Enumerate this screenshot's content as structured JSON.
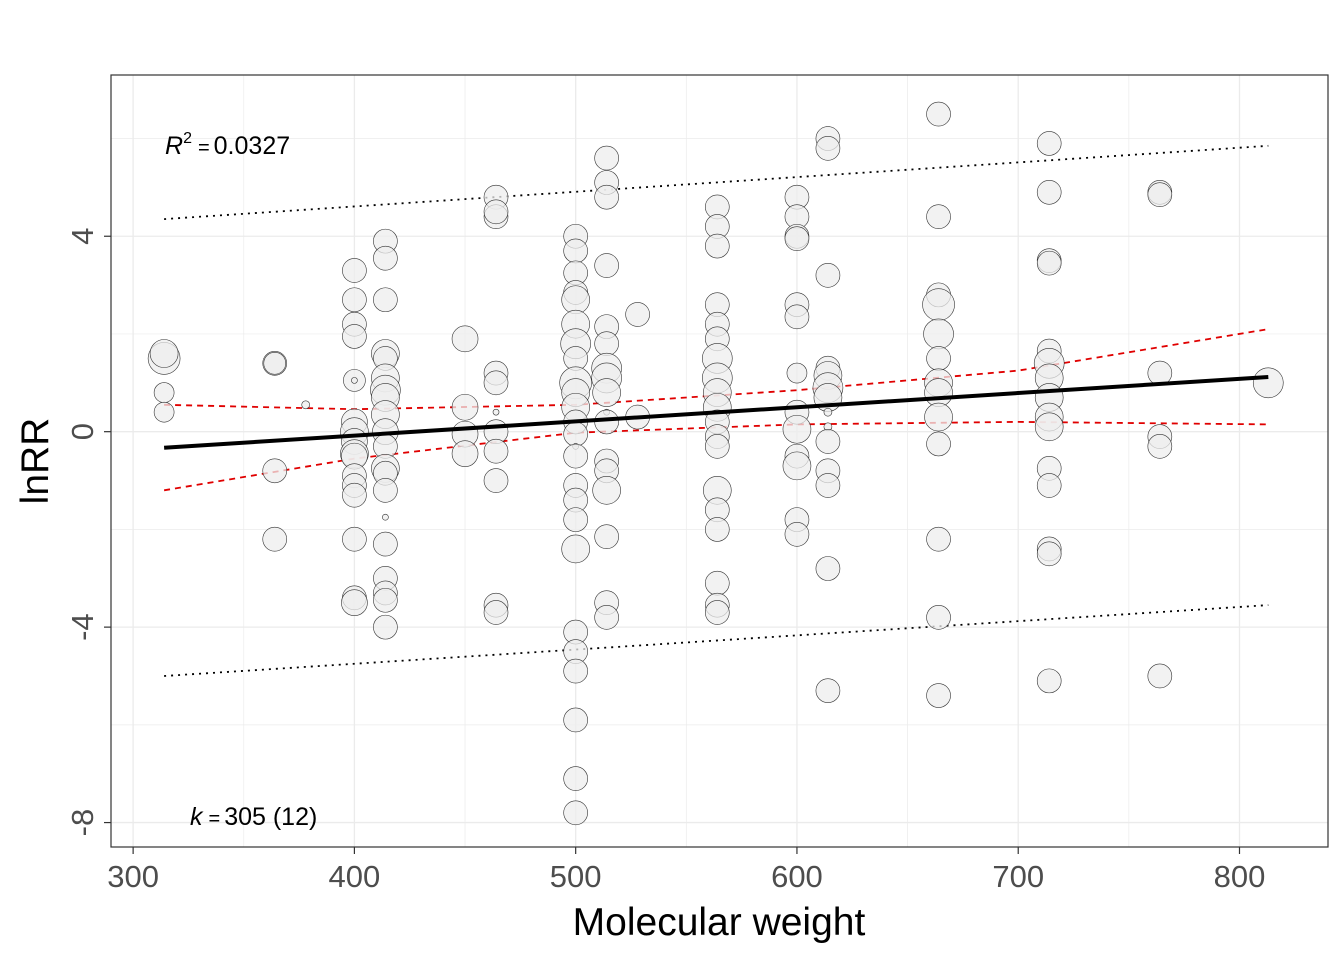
{
  "chart_data": {
    "type": "scatter",
    "xlabel": "Molecular weight",
    "ylabel": "lnRR",
    "xlim": [
      290,
      840
    ],
    "ylim": [
      -8.5,
      7.3
    ],
    "x_ticks": [
      300,
      400,
      500,
      600,
      700,
      800
    ],
    "y_ticks": [
      4,
      0,
      -4,
      -8
    ],
    "x_tick_labels": [
      "300",
      "400",
      "500",
      "600",
      "700",
      "800"
    ],
    "y_tick_labels": [
      "4",
      "0",
      "-4",
      "-8"
    ],
    "grid": true,
    "annotations": {
      "r2_symbol": "R",
      "r2_exp": "2",
      "r2_eq": "=",
      "r2_value": "0.0327",
      "k_symbol": "k",
      "k_eq": "=",
      "k_value": "305 (12)"
    },
    "regression_line": {
      "x": [
        314,
        813
      ],
      "y": [
        -0.33,
        1.12
      ]
    },
    "confidence_band": {
      "x": [
        314,
        400,
        500,
        600,
        700,
        813
      ],
      "upper": [
        0.55,
        0.46,
        0.55,
        0.85,
        1.25,
        2.1
      ],
      "lower": [
        -1.2,
        -0.55,
        -0.02,
        0.15,
        0.2,
        0.15
      ]
    },
    "prediction_band": {
      "x": [
        314,
        813
      ],
      "upper": [
        4.35,
        5.85
      ],
      "lower": [
        -5.0,
        -3.55
      ]
    },
    "colors": {
      "point_fill": "#eeeeee",
      "point_stroke": "#333333",
      "regression": "#000000",
      "confidence": "#e00000",
      "prediction": "#000000",
      "grid": "#ebebeb",
      "panel_border": "#333333"
    },
    "points": [
      {
        "x": 314,
        "y": 1.5,
        "s": 16
      },
      {
        "x": 314,
        "y": 1.6,
        "s": 14
      },
      {
        "x": 314,
        "y": 0.8,
        "s": 10
      },
      {
        "x": 314,
        "y": 0.4,
        "s": 10
      },
      {
        "x": 378,
        "y": 0.55,
        "s": 4
      },
      {
        "x": 364,
        "y": 1.4,
        "s": 12
      },
      {
        "x": 364,
        "y": 1.4,
        "s": 11
      },
      {
        "x": 364,
        "y": -0.8,
        "s": 12
      },
      {
        "x": 364,
        "y": -2.2,
        "s": 12
      },
      {
        "x": 400,
        "y": 3.3,
        "s": 12
      },
      {
        "x": 400,
        "y": 2.7,
        "s": 12
      },
      {
        "x": 400,
        "y": 2.2,
        "s": 12
      },
      {
        "x": 400,
        "y": 1.95,
        "s": 12
      },
      {
        "x": 400,
        "y": 1.05,
        "s": 11
      },
      {
        "x": 400,
        "y": 1.05,
        "s": 3
      },
      {
        "x": 400,
        "y": 0.2,
        "s": 13
      },
      {
        "x": 400,
        "y": 0.0,
        "s": 14
      },
      {
        "x": 400,
        "y": -0.2,
        "s": 13
      },
      {
        "x": 400,
        "y": -0.45,
        "s": 14
      },
      {
        "x": 400,
        "y": -0.5,
        "s": 13
      },
      {
        "x": 400,
        "y": -0.9,
        "s": 12
      },
      {
        "x": 400,
        "y": -1.1,
        "s": 12
      },
      {
        "x": 400,
        "y": -1.3,
        "s": 12
      },
      {
        "x": 400,
        "y": -2.2,
        "s": 12
      },
      {
        "x": 400,
        "y": -3.4,
        "s": 12
      },
      {
        "x": 400,
        "y": -3.5,
        "s": 13
      },
      {
        "x": 414,
        "y": 3.9,
        "s": 12
      },
      {
        "x": 414,
        "y": 3.55,
        "s": 12
      },
      {
        "x": 414,
        "y": 2.7,
        "s": 12
      },
      {
        "x": 414,
        "y": 1.6,
        "s": 14
      },
      {
        "x": 414,
        "y": 1.5,
        "s": 12
      },
      {
        "x": 414,
        "y": 1.1,
        "s": 14
      },
      {
        "x": 414,
        "y": 0.85,
        "s": 15
      },
      {
        "x": 414,
        "y": 0.7,
        "s": 14
      },
      {
        "x": 414,
        "y": 0.35,
        "s": 14
      },
      {
        "x": 414,
        "y": 0.0,
        "s": 13
      },
      {
        "x": 414,
        "y": -0.3,
        "s": 12
      },
      {
        "x": 414,
        "y": -0.75,
        "s": 14
      },
      {
        "x": 414,
        "y": -0.85,
        "s": 12
      },
      {
        "x": 414,
        "y": -1.2,
        "s": 12
      },
      {
        "x": 414,
        "y": -1.75,
        "s": 3
      },
      {
        "x": 414,
        "y": -2.3,
        "s": 12
      },
      {
        "x": 414,
        "y": -3.0,
        "s": 12
      },
      {
        "x": 414,
        "y": -3.3,
        "s": 12
      },
      {
        "x": 414,
        "y": -3.45,
        "s": 12
      },
      {
        "x": 414,
        "y": -4.0,
        "s": 12
      },
      {
        "x": 450,
        "y": 1.9,
        "s": 13
      },
      {
        "x": 450,
        "y": 0.5,
        "s": 13
      },
      {
        "x": 450,
        "y": -0.05,
        "s": 13
      },
      {
        "x": 450,
        "y": -0.45,
        "s": 13
      },
      {
        "x": 464,
        "y": 4.8,
        "s": 12
      },
      {
        "x": 464,
        "y": 4.4,
        "s": 12
      },
      {
        "x": 464,
        "y": 4.5,
        "s": 12
      },
      {
        "x": 464,
        "y": 1.2,
        "s": 12
      },
      {
        "x": 464,
        "y": 1.0,
        "s": 12
      },
      {
        "x": 464,
        "y": 0.4,
        "s": 3
      },
      {
        "x": 464,
        "y": 0.0,
        "s": 12
      },
      {
        "x": 464,
        "y": -0.4,
        "s": 12
      },
      {
        "x": 464,
        "y": -1.0,
        "s": 12
      },
      {
        "x": 464,
        "y": -3.55,
        "s": 12
      },
      {
        "x": 464,
        "y": -3.7,
        "s": 12
      },
      {
        "x": 500,
        "y": 4.0,
        "s": 12
      },
      {
        "x": 500,
        "y": 3.7,
        "s": 12
      },
      {
        "x": 500,
        "y": 3.25,
        "s": 12
      },
      {
        "x": 500,
        "y": 2.85,
        "s": 12
      },
      {
        "x": 500,
        "y": 2.7,
        "s": 14
      },
      {
        "x": 500,
        "y": 2.2,
        "s": 14
      },
      {
        "x": 500,
        "y": 1.8,
        "s": 15
      },
      {
        "x": 500,
        "y": 1.5,
        "s": 12
      },
      {
        "x": 500,
        "y": 1.0,
        "s": 16
      },
      {
        "x": 500,
        "y": 0.8,
        "s": 14
      },
      {
        "x": 500,
        "y": 0.5,
        "s": 14
      },
      {
        "x": 500,
        "y": 0.2,
        "s": 12
      },
      {
        "x": 500,
        "y": -0.05,
        "s": 12
      },
      {
        "x": 500,
        "y": -0.3,
        "s": 3
      },
      {
        "x": 500,
        "y": -0.5,
        "s": 12
      },
      {
        "x": 500,
        "y": -1.1,
        "s": 12
      },
      {
        "x": 500,
        "y": -1.4,
        "s": 12
      },
      {
        "x": 500,
        "y": -1.8,
        "s": 12
      },
      {
        "x": 500,
        "y": -2.4,
        "s": 14
      },
      {
        "x": 500,
        "y": -4.1,
        "s": 12
      },
      {
        "x": 500,
        "y": -4.5,
        "s": 12
      },
      {
        "x": 500,
        "y": -4.9,
        "s": 12
      },
      {
        "x": 500,
        "y": -5.9,
        "s": 12
      },
      {
        "x": 500,
        "y": -7.1,
        "s": 12
      },
      {
        "x": 500,
        "y": -7.8,
        "s": 12
      },
      {
        "x": 514,
        "y": 5.6,
        "s": 12
      },
      {
        "x": 514,
        "y": 5.1,
        "s": 12
      },
      {
        "x": 514,
        "y": 4.8,
        "s": 12
      },
      {
        "x": 514,
        "y": 3.4,
        "s": 12
      },
      {
        "x": 514,
        "y": 2.15,
        "s": 12
      },
      {
        "x": 514,
        "y": 1.8,
        "s": 12
      },
      {
        "x": 514,
        "y": 1.3,
        "s": 15
      },
      {
        "x": 514,
        "y": 1.1,
        "s": 15
      },
      {
        "x": 514,
        "y": 0.8,
        "s": 14
      },
      {
        "x": 514,
        "y": 0.4,
        "s": 3
      },
      {
        "x": 514,
        "y": 0.2,
        "s": 12
      },
      {
        "x": 514,
        "y": -0.6,
        "s": 12
      },
      {
        "x": 514,
        "y": -0.8,
        "s": 12
      },
      {
        "x": 514,
        "y": -1.2,
        "s": 14
      },
      {
        "x": 514,
        "y": -2.15,
        "s": 12
      },
      {
        "x": 514,
        "y": -3.5,
        "s": 12
      },
      {
        "x": 514,
        "y": -3.8,
        "s": 12
      },
      {
        "x": 528,
        "y": 2.4,
        "s": 12
      },
      {
        "x": 528,
        "y": 0.3,
        "s": 12
      },
      {
        "x": 564,
        "y": 4.6,
        "s": 12
      },
      {
        "x": 564,
        "y": 4.2,
        "s": 12
      },
      {
        "x": 564,
        "y": 3.8,
        "s": 12
      },
      {
        "x": 564,
        "y": 2.6,
        "s": 12
      },
      {
        "x": 564,
        "y": 2.2,
        "s": 12
      },
      {
        "x": 564,
        "y": 1.9,
        "s": 12
      },
      {
        "x": 564,
        "y": 1.5,
        "s": 15
      },
      {
        "x": 564,
        "y": 1.1,
        "s": 15
      },
      {
        "x": 564,
        "y": 0.8,
        "s": 14
      },
      {
        "x": 564,
        "y": 0.5,
        "s": 14
      },
      {
        "x": 564,
        "y": 0.2,
        "s": 12
      },
      {
        "x": 564,
        "y": -0.1,
        "s": 12
      },
      {
        "x": 564,
        "y": -0.3,
        "s": 12
      },
      {
        "x": 564,
        "y": -1.2,
        "s": 14
      },
      {
        "x": 564,
        "y": -1.6,
        "s": 12
      },
      {
        "x": 564,
        "y": -2.0,
        "s": 12
      },
      {
        "x": 564,
        "y": -3.1,
        "s": 12
      },
      {
        "x": 564,
        "y": -3.55,
        "s": 12
      },
      {
        "x": 564,
        "y": -3.7,
        "s": 12
      },
      {
        "x": 600,
        "y": 4.8,
        "s": 12
      },
      {
        "x": 600,
        "y": 4.4,
        "s": 12
      },
      {
        "x": 600,
        "y": 4.0,
        "s": 12
      },
      {
        "x": 600,
        "y": 3.95,
        "s": 12
      },
      {
        "x": 600,
        "y": 2.6,
        "s": 12
      },
      {
        "x": 600,
        "y": 2.35,
        "s": 12
      },
      {
        "x": 600,
        "y": 1.2,
        "s": 10
      },
      {
        "x": 600,
        "y": 0.4,
        "s": 12
      },
      {
        "x": 600,
        "y": 0.05,
        "s": 14
      },
      {
        "x": 600,
        "y": -0.5,
        "s": 12
      },
      {
        "x": 600,
        "y": -0.7,
        "s": 14
      },
      {
        "x": 600,
        "y": -1.8,
        "s": 12
      },
      {
        "x": 600,
        "y": -2.1,
        "s": 12
      },
      {
        "x": 614,
        "y": 6.0,
        "s": 12
      },
      {
        "x": 614,
        "y": 5.8,
        "s": 12
      },
      {
        "x": 614,
        "y": 3.2,
        "s": 12
      },
      {
        "x": 614,
        "y": 1.3,
        "s": 12
      },
      {
        "x": 614,
        "y": 1.15,
        "s": 14
      },
      {
        "x": 614,
        "y": 0.9,
        "s": 15
      },
      {
        "x": 614,
        "y": 0.7,
        "s": 14
      },
      {
        "x": 614,
        "y": 0.4,
        "s": 4
      },
      {
        "x": 614,
        "y": 0.1,
        "s": 4
      },
      {
        "x": 614,
        "y": -0.2,
        "s": 12
      },
      {
        "x": 614,
        "y": -0.8,
        "s": 12
      },
      {
        "x": 614,
        "y": -1.1,
        "s": 12
      },
      {
        "x": 614,
        "y": -2.8,
        "s": 12
      },
      {
        "x": 614,
        "y": -5.3,
        "s": 12
      },
      {
        "x": 664,
        "y": 6.5,
        "s": 12
      },
      {
        "x": 664,
        "y": 4.4,
        "s": 12
      },
      {
        "x": 664,
        "y": 2.8,
        "s": 12
      },
      {
        "x": 664,
        "y": 2.6,
        "s": 16
      },
      {
        "x": 664,
        "y": 2.0,
        "s": 15
      },
      {
        "x": 664,
        "y": 1.5,
        "s": 12
      },
      {
        "x": 664,
        "y": 1.0,
        "s": 14
      },
      {
        "x": 664,
        "y": 0.8,
        "s": 14
      },
      {
        "x": 664,
        "y": 0.3,
        "s": 14
      },
      {
        "x": 664,
        "y": -0.25,
        "s": 12
      },
      {
        "x": 664,
        "y": -2.2,
        "s": 12
      },
      {
        "x": 664,
        "y": -3.8,
        "s": 12
      },
      {
        "x": 664,
        "y": -5.4,
        "s": 12
      },
      {
        "x": 714,
        "y": 5.9,
        "s": 12
      },
      {
        "x": 714,
        "y": 4.9,
        "s": 12
      },
      {
        "x": 714,
        "y": 3.5,
        "s": 12
      },
      {
        "x": 714,
        "y": 3.45,
        "s": 12
      },
      {
        "x": 714,
        "y": 1.65,
        "s": 12
      },
      {
        "x": 714,
        "y": 1.4,
        "s": 15
      },
      {
        "x": 714,
        "y": 1.1,
        "s": 14
      },
      {
        "x": 714,
        "y": 0.7,
        "s": 14
      },
      {
        "x": 714,
        "y": 0.3,
        "s": 14
      },
      {
        "x": 714,
        "y": 0.1,
        "s": 14
      },
      {
        "x": 714,
        "y": -0.75,
        "s": 12
      },
      {
        "x": 714,
        "y": -1.1,
        "s": 12
      },
      {
        "x": 714,
        "y": -2.4,
        "s": 12
      },
      {
        "x": 714,
        "y": -2.5,
        "s": 12
      },
      {
        "x": 714,
        "y": -5.1,
        "s": 12
      },
      {
        "x": 764,
        "y": 4.9,
        "s": 12
      },
      {
        "x": 764,
        "y": 4.85,
        "s": 12
      },
      {
        "x": 764,
        "y": 1.2,
        "s": 12
      },
      {
        "x": 764,
        "y": -0.1,
        "s": 12
      },
      {
        "x": 764,
        "y": -0.3,
        "s": 12
      },
      {
        "x": 764,
        "y": -5.0,
        "s": 12
      },
      {
        "x": 813,
        "y": 1.0,
        "s": 15
      }
    ]
  }
}
